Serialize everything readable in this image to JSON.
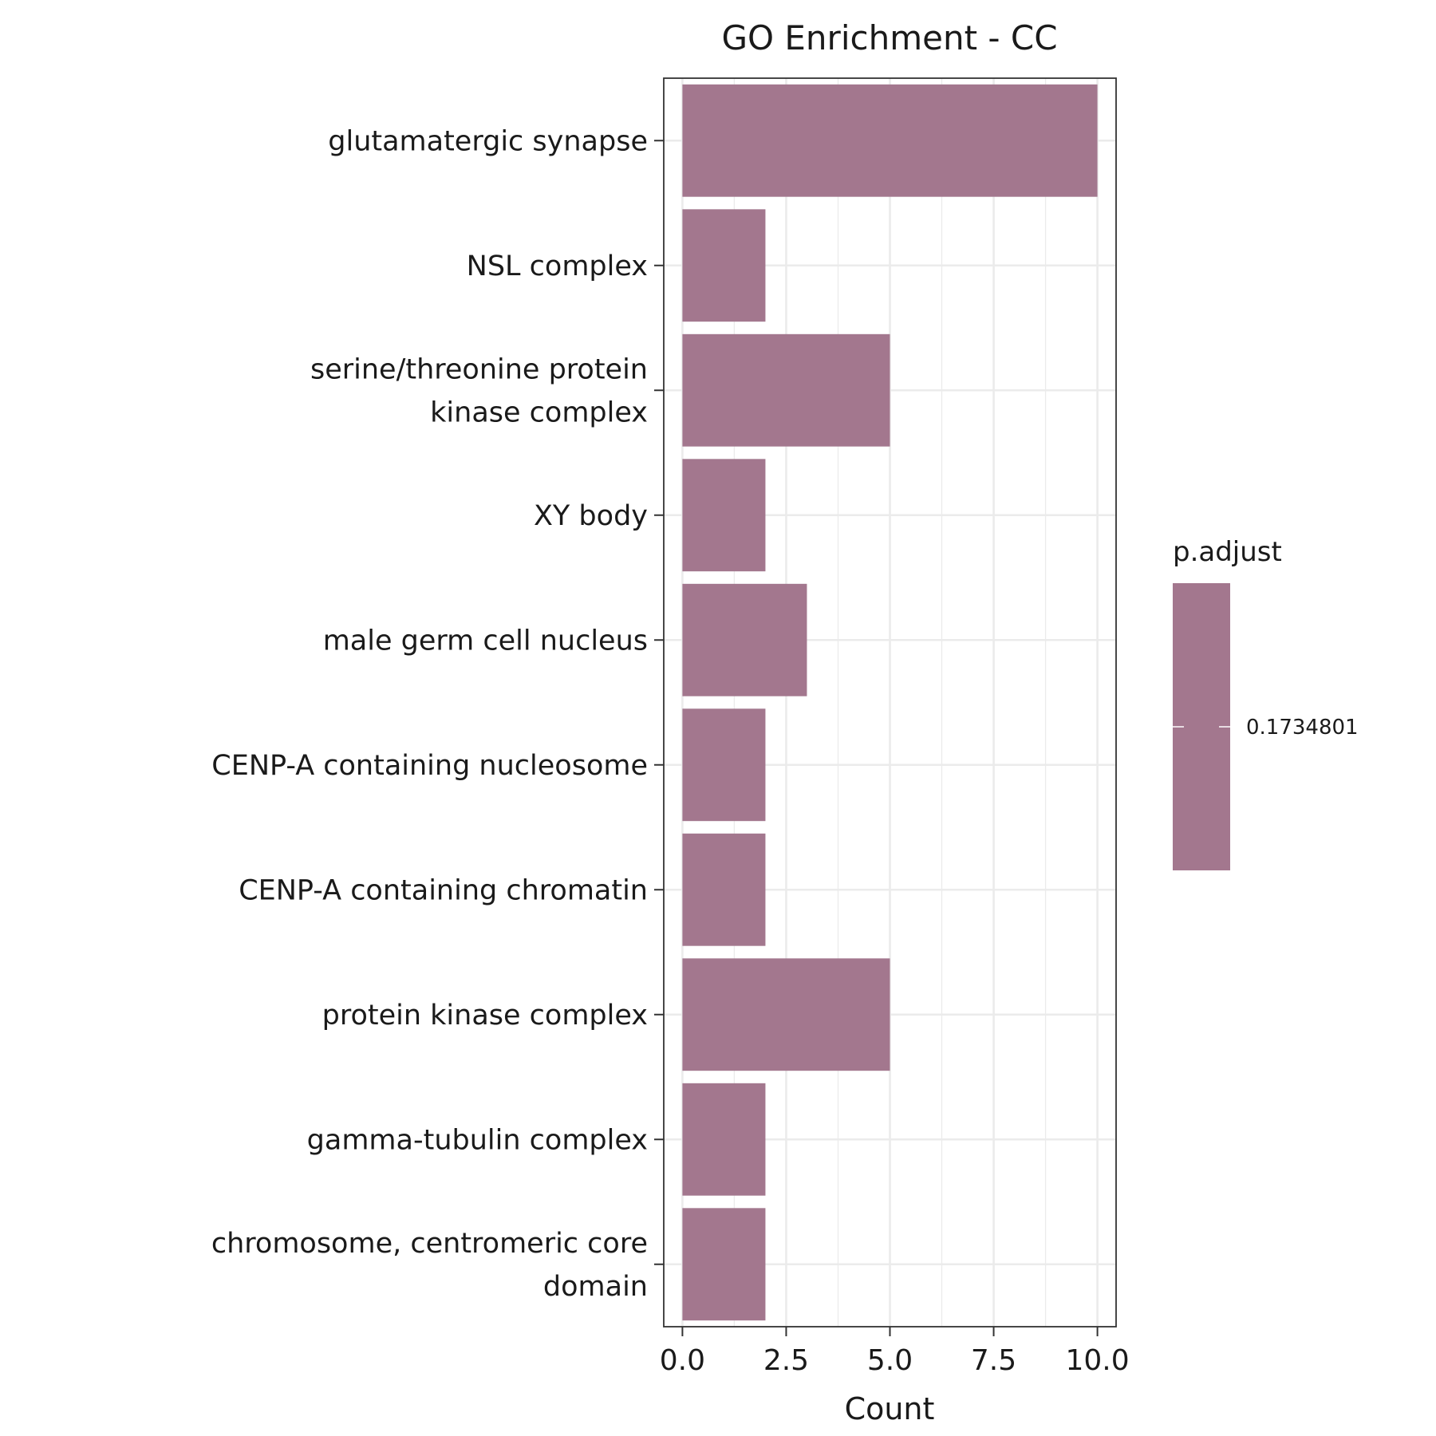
{
  "chart_data": {
    "type": "bar",
    "orientation": "horizontal",
    "title": "GO Enrichment - CC",
    "xlabel": "Count",
    "ylabel": "",
    "xlim": [
      -0.45,
      10.45
    ],
    "x_ticks": [
      0.0,
      2.5,
      5.0,
      7.5,
      10.0
    ],
    "x_tick_labels": [
      "0.0",
      "2.5",
      "5.0",
      "7.5",
      "10.0"
    ],
    "grid": true,
    "categories": [
      [
        "glutamatergic synapse"
      ],
      [
        "NSL complex"
      ],
      [
        "serine/threonine protein",
        "kinase complex"
      ],
      [
        "XY body"
      ],
      [
        "male germ cell nucleus"
      ],
      [
        "CENP-A containing nucleosome"
      ],
      [
        "CENP-A containing chromatin"
      ],
      [
        "protein kinase complex"
      ],
      [
        "gamma-tubulin complex"
      ],
      [
        "chromosome, centromeric core",
        "domain"
      ]
    ],
    "values": [
      10,
      2,
      5,
      2,
      3,
      2,
      2,
      5,
      2,
      2
    ],
    "bar_color": "#a3778e",
    "legend": {
      "title": "p.adjust",
      "label": "0.1734801",
      "color": "#a3778e",
      "placement": "right"
    }
  }
}
